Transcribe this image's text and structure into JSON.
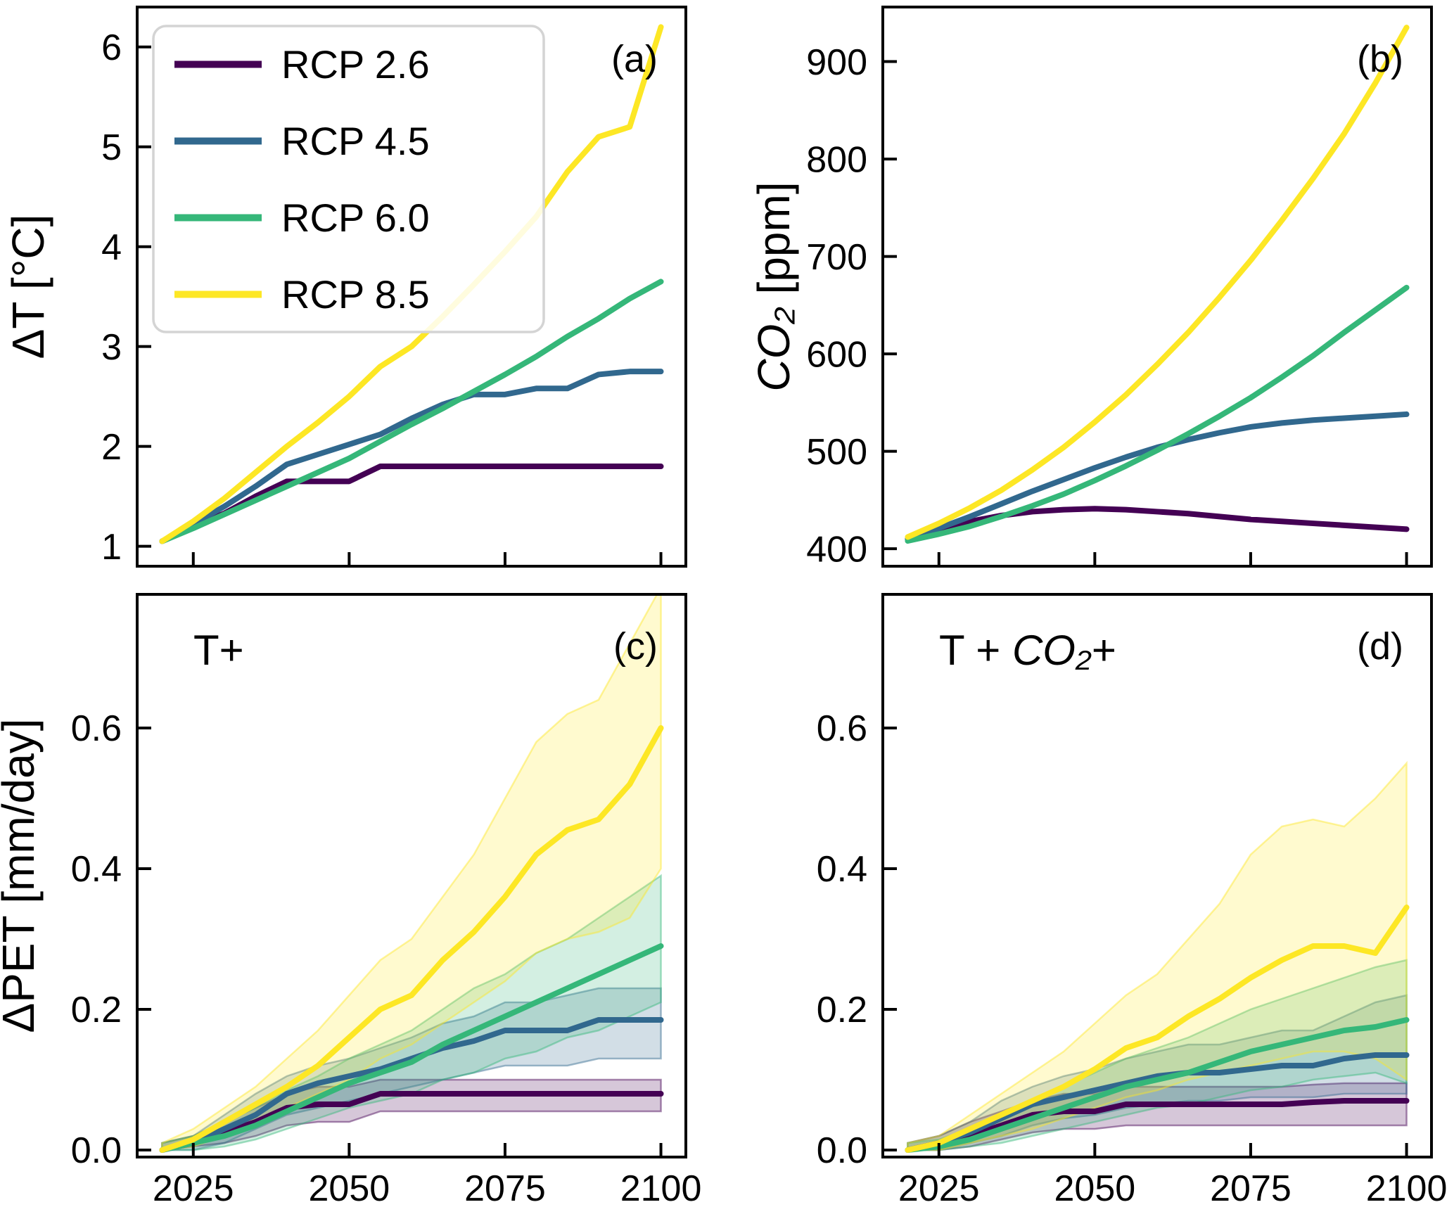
{
  "figure": {
    "background": "#ffffff",
    "description": "2x2 grid of climate scenario projections for four RCP scenarios"
  },
  "colors": {
    "rcp26": "#440154",
    "rcp45": "#31688e",
    "rcp60": "#35b779",
    "rcp85": "#fde725"
  },
  "legend": {
    "location": "upper-left of panel a",
    "entries": [
      {
        "label": "RCP 2.6",
        "color_key": "rcp26"
      },
      {
        "label": "RCP 4.5",
        "color_key": "rcp45"
      },
      {
        "label": "RCP 6.0",
        "color_key": "rcp60"
      },
      {
        "label": "RCP 8.5",
        "color_key": "rcp85"
      }
    ]
  },
  "chart_data": [
    {
      "id": "a",
      "type": "line",
      "corner_label": "(a)",
      "inner_title": "",
      "ylabel": "ΔT [°C]",
      "xlabel": "",
      "x": [
        2020,
        2025,
        2030,
        2035,
        2040,
        2045,
        2050,
        2055,
        2060,
        2065,
        2070,
        2075,
        2080,
        2085,
        2090,
        2095,
        2100
      ],
      "xlim": [
        2016,
        2104
      ],
      "ylim": [
        0.8,
        6.4
      ],
      "xtick_values": [
        2025,
        2050,
        2075,
        2100
      ],
      "xtick_labels": [
        "2025",
        "2050",
        "2075",
        "2100"
      ],
      "xtick_labels_visible": false,
      "ytick_values": [
        1,
        2,
        3,
        4,
        5,
        6
      ],
      "ytick_labels": [
        "1",
        "2",
        "3",
        "4",
        "5",
        "6"
      ],
      "grid": false,
      "series": [
        {
          "name": "RCP 2.6",
          "color_key": "rcp26",
          "values": [
            1.05,
            1.2,
            1.33,
            1.5,
            1.65,
            1.65,
            1.65,
            1.8,
            1.8,
            1.8,
            1.8,
            1.8,
            1.8,
            1.8,
            1.8,
            1.8,
            1.8
          ]
        },
        {
          "name": "RCP 4.5",
          "color_key": "rcp45",
          "values": [
            1.05,
            1.22,
            1.4,
            1.6,
            1.82,
            1.92,
            2.02,
            2.12,
            2.28,
            2.42,
            2.52,
            2.52,
            2.58,
            2.58,
            2.72,
            2.75,
            2.75
          ]
        },
        {
          "name": "RCP 6.0",
          "color_key": "rcp60",
          "values": [
            1.05,
            1.18,
            1.32,
            1.46,
            1.6,
            1.74,
            1.88,
            2.05,
            2.22,
            2.38,
            2.55,
            2.72,
            2.9,
            3.1,
            3.28,
            3.48,
            3.65
          ]
        },
        {
          "name": "RCP 8.5",
          "color_key": "rcp85",
          "values": [
            1.05,
            1.25,
            1.48,
            1.74,
            2.0,
            2.24,
            2.5,
            2.8,
            3.0,
            3.3,
            3.62,
            3.95,
            4.3,
            4.75,
            5.1,
            5.2,
            6.2
          ]
        }
      ]
    },
    {
      "id": "b",
      "type": "line",
      "corner_label": "(b)",
      "inner_title": "",
      "ylabel": "CO₂ [ppm]",
      "xlabel": "",
      "x": [
        2020,
        2025,
        2030,
        2035,
        2040,
        2045,
        2050,
        2055,
        2060,
        2065,
        2070,
        2075,
        2080,
        2085,
        2090,
        2095,
        2100
      ],
      "xlim": [
        2016,
        2104
      ],
      "ylim": [
        382,
        956
      ],
      "xtick_values": [
        2025,
        2050,
        2075,
        2100
      ],
      "xtick_labels": [
        "2025",
        "2050",
        "2075",
        "2100"
      ],
      "xtick_labels_visible": false,
      "ytick_values": [
        400,
        500,
        600,
        700,
        800,
        900
      ],
      "ytick_labels": [
        "400",
        "500",
        "600",
        "700",
        "800",
        "900"
      ],
      "grid": false,
      "series": [
        {
          "name": "RCP 2.6",
          "color_key": "rcp26",
          "values": [
            410,
            420,
            428,
            434,
            438,
            440,
            441,
            440,
            438,
            436,
            433,
            430,
            428,
            426,
            424,
            422,
            420
          ]
        },
        {
          "name": "RCP 4.5",
          "color_key": "rcp45",
          "values": [
            410,
            421,
            433,
            446,
            459,
            471,
            483,
            494,
            504,
            512,
            519,
            525,
            529,
            532,
            534,
            536,
            538
          ]
        },
        {
          "name": "RCP 6.0",
          "color_key": "rcp60",
          "values": [
            408,
            415,
            423,
            433,
            444,
            456,
            470,
            485,
            501,
            518,
            536,
            555,
            576,
            598,
            622,
            645,
            668
          ]
        },
        {
          "name": "RCP 8.5",
          "color_key": "rcp85",
          "values": [
            412,
            426,
            442,
            460,
            481,
            504,
            530,
            558,
            589,
            622,
            658,
            696,
            737,
            780,
            826,
            878,
            935
          ]
        }
      ]
    },
    {
      "id": "c",
      "type": "line-with-bands",
      "corner_label": "(c)",
      "inner_title": "T+",
      "ylabel": "ΔPET [mm/day]",
      "xlabel": "",
      "x": [
        2020,
        2025,
        2030,
        2035,
        2040,
        2045,
        2050,
        2055,
        2060,
        2065,
        2070,
        2075,
        2080,
        2085,
        2090,
        2095,
        2100
      ],
      "xlim": [
        2016,
        2104
      ],
      "ylim": [
        -0.01,
        0.79
      ],
      "xtick_values": [
        2025,
        2050,
        2075,
        2100
      ],
      "xtick_labels": [
        "2025",
        "2050",
        "2075",
        "2100"
      ],
      "xtick_labels_visible": true,
      "ytick_values": [
        0.0,
        0.2,
        0.4,
        0.6
      ],
      "ytick_labels": [
        "0.0",
        "0.2",
        "0.4",
        "0.6"
      ],
      "grid": false,
      "series": [
        {
          "name": "RCP 2.6",
          "color_key": "rcp26",
          "values": [
            0.0,
            0.01,
            0.025,
            0.04,
            0.06,
            0.065,
            0.065,
            0.08,
            0.08,
            0.08,
            0.08,
            0.08,
            0.08,
            0.08,
            0.08,
            0.08,
            0.08
          ],
          "band_lower": [
            0.0,
            0.005,
            0.01,
            0.02,
            0.035,
            0.04,
            0.04,
            0.055,
            0.055,
            0.055,
            0.055,
            0.055,
            0.055,
            0.055,
            0.055,
            0.055,
            0.055
          ],
          "band_upper": [
            0.01,
            0.02,
            0.04,
            0.06,
            0.08,
            0.09,
            0.09,
            0.1,
            0.1,
            0.1,
            0.1,
            0.1,
            0.1,
            0.1,
            0.1,
            0.1,
            0.1
          ]
        },
        {
          "name": "RCP 4.5",
          "color_key": "rcp45",
          "values": [
            0.0,
            0.01,
            0.03,
            0.05,
            0.08,
            0.095,
            0.105,
            0.115,
            0.13,
            0.145,
            0.155,
            0.17,
            0.17,
            0.17,
            0.185,
            0.185,
            0.185
          ],
          "band_lower": [
            0.0,
            0.0,
            0.01,
            0.03,
            0.05,
            0.06,
            0.07,
            0.08,
            0.09,
            0.1,
            0.11,
            0.12,
            0.12,
            0.12,
            0.13,
            0.13,
            0.13
          ],
          "band_upper": [
            0.01,
            0.02,
            0.05,
            0.08,
            0.105,
            0.12,
            0.13,
            0.145,
            0.16,
            0.18,
            0.19,
            0.21,
            0.21,
            0.22,
            0.23,
            0.23,
            0.23
          ]
        },
        {
          "name": "RCP 6.0",
          "color_key": "rcp60",
          "values": [
            0.0,
            0.01,
            0.02,
            0.035,
            0.055,
            0.075,
            0.095,
            0.11,
            0.125,
            0.15,
            0.17,
            0.19,
            0.21,
            0.23,
            0.25,
            0.27,
            0.29
          ],
          "band_lower": [
            0.0,
            0.0,
            0.005,
            0.015,
            0.03,
            0.045,
            0.06,
            0.07,
            0.08,
            0.1,
            0.11,
            0.13,
            0.14,
            0.16,
            0.17,
            0.19,
            0.21
          ],
          "band_upper": [
            0.01,
            0.02,
            0.04,
            0.06,
            0.085,
            0.105,
            0.13,
            0.15,
            0.17,
            0.2,
            0.23,
            0.25,
            0.28,
            0.3,
            0.33,
            0.36,
            0.39
          ]
        },
        {
          "name": "RCP 8.5",
          "color_key": "rcp85",
          "values": [
            0.0,
            0.015,
            0.04,
            0.065,
            0.09,
            0.12,
            0.16,
            0.2,
            0.22,
            0.27,
            0.31,
            0.36,
            0.42,
            0.455,
            0.47,
            0.52,
            0.6
          ],
          "band_lower": [
            0.0,
            0.005,
            0.02,
            0.04,
            0.06,
            0.08,
            0.1,
            0.13,
            0.15,
            0.18,
            0.21,
            0.24,
            0.28,
            0.3,
            0.31,
            0.33,
            0.4
          ],
          "band_upper": [
            0.01,
            0.03,
            0.06,
            0.09,
            0.13,
            0.17,
            0.22,
            0.27,
            0.3,
            0.36,
            0.42,
            0.5,
            0.58,
            0.62,
            0.64,
            0.72,
            0.8
          ]
        }
      ]
    },
    {
      "id": "d",
      "type": "line-with-bands",
      "corner_label": "(d)",
      "inner_title": "T + CO₂+",
      "ylabel": "",
      "xlabel": "",
      "x": [
        2020,
        2025,
        2030,
        2035,
        2040,
        2045,
        2050,
        2055,
        2060,
        2065,
        2070,
        2075,
        2080,
        2085,
        2090,
        2095,
        2100
      ],
      "xlim": [
        2016,
        2104
      ],
      "ylim": [
        -0.01,
        0.79
      ],
      "xtick_values": [
        2025,
        2050,
        2075,
        2100
      ],
      "xtick_labels": [
        "2025",
        "2050",
        "2075",
        "2100"
      ],
      "xtick_labels_visible": true,
      "ytick_values": [
        0.0,
        0.2,
        0.4,
        0.6
      ],
      "ytick_labels": [
        "0.0",
        "0.2",
        "0.4",
        "0.6"
      ],
      "grid": false,
      "series": [
        {
          "name": "RCP 2.6",
          "color_key": "rcp26",
          "values": [
            0.0,
            0.01,
            0.02,
            0.035,
            0.05,
            0.055,
            0.055,
            0.065,
            0.065,
            0.065,
            0.065,
            0.065,
            0.065,
            0.068,
            0.07,
            0.07,
            0.07
          ],
          "band_lower": [
            0.0,
            0.0,
            0.005,
            0.015,
            0.025,
            0.03,
            0.03,
            0.035,
            0.035,
            0.035,
            0.035,
            0.035,
            0.035,
            0.035,
            0.035,
            0.035,
            0.035
          ],
          "band_upper": [
            0.01,
            0.02,
            0.04,
            0.055,
            0.07,
            0.08,
            0.08,
            0.09,
            0.09,
            0.09,
            0.09,
            0.09,
            0.09,
            0.093,
            0.095,
            0.095,
            0.095
          ]
        },
        {
          "name": "RCP 4.5",
          "color_key": "rcp45",
          "values": [
            0.0,
            0.01,
            0.025,
            0.045,
            0.065,
            0.075,
            0.085,
            0.095,
            0.105,
            0.11,
            0.11,
            0.115,
            0.12,
            0.12,
            0.13,
            0.135,
            0.135
          ],
          "band_lower": [
            0.0,
            0.0,
            0.01,
            0.02,
            0.035,
            0.045,
            0.05,
            0.06,
            0.065,
            0.07,
            0.07,
            0.075,
            0.075,
            0.075,
            0.08,
            0.08,
            0.08
          ],
          "band_upper": [
            0.01,
            0.02,
            0.04,
            0.07,
            0.09,
            0.105,
            0.115,
            0.13,
            0.14,
            0.15,
            0.15,
            0.16,
            0.17,
            0.17,
            0.19,
            0.21,
            0.22
          ]
        },
        {
          "name": "RCP 6.0",
          "color_key": "rcp60",
          "values": [
            0.0,
            0.005,
            0.015,
            0.03,
            0.045,
            0.06,
            0.075,
            0.09,
            0.1,
            0.11,
            0.125,
            0.14,
            0.15,
            0.16,
            0.17,
            0.175,
            0.185
          ],
          "band_lower": [
            0.0,
            0.0,
            0.005,
            0.01,
            0.02,
            0.03,
            0.04,
            0.05,
            0.06,
            0.065,
            0.075,
            0.085,
            0.09,
            0.1,
            0.105,
            0.11,
            0.095
          ],
          "band_upper": [
            0.01,
            0.015,
            0.03,
            0.05,
            0.07,
            0.09,
            0.11,
            0.13,
            0.145,
            0.16,
            0.18,
            0.2,
            0.215,
            0.23,
            0.245,
            0.26,
            0.27
          ]
        },
        {
          "name": "RCP 8.5",
          "color_key": "rcp85",
          "values": [
            0.0,
            0.01,
            0.03,
            0.05,
            0.07,
            0.09,
            0.115,
            0.145,
            0.16,
            0.19,
            0.215,
            0.245,
            0.27,
            0.29,
            0.29,
            0.28,
            0.345
          ],
          "band_lower": [
            0.0,
            0.0,
            0.01,
            0.02,
            0.03,
            0.045,
            0.06,
            0.075,
            0.085,
            0.1,
            0.11,
            0.12,
            0.13,
            0.14,
            0.14,
            0.13,
            0.1
          ],
          "band_upper": [
            0.01,
            0.02,
            0.05,
            0.08,
            0.11,
            0.14,
            0.18,
            0.22,
            0.25,
            0.3,
            0.35,
            0.42,
            0.46,
            0.47,
            0.46,
            0.5,
            0.55
          ]
        }
      ]
    }
  ]
}
